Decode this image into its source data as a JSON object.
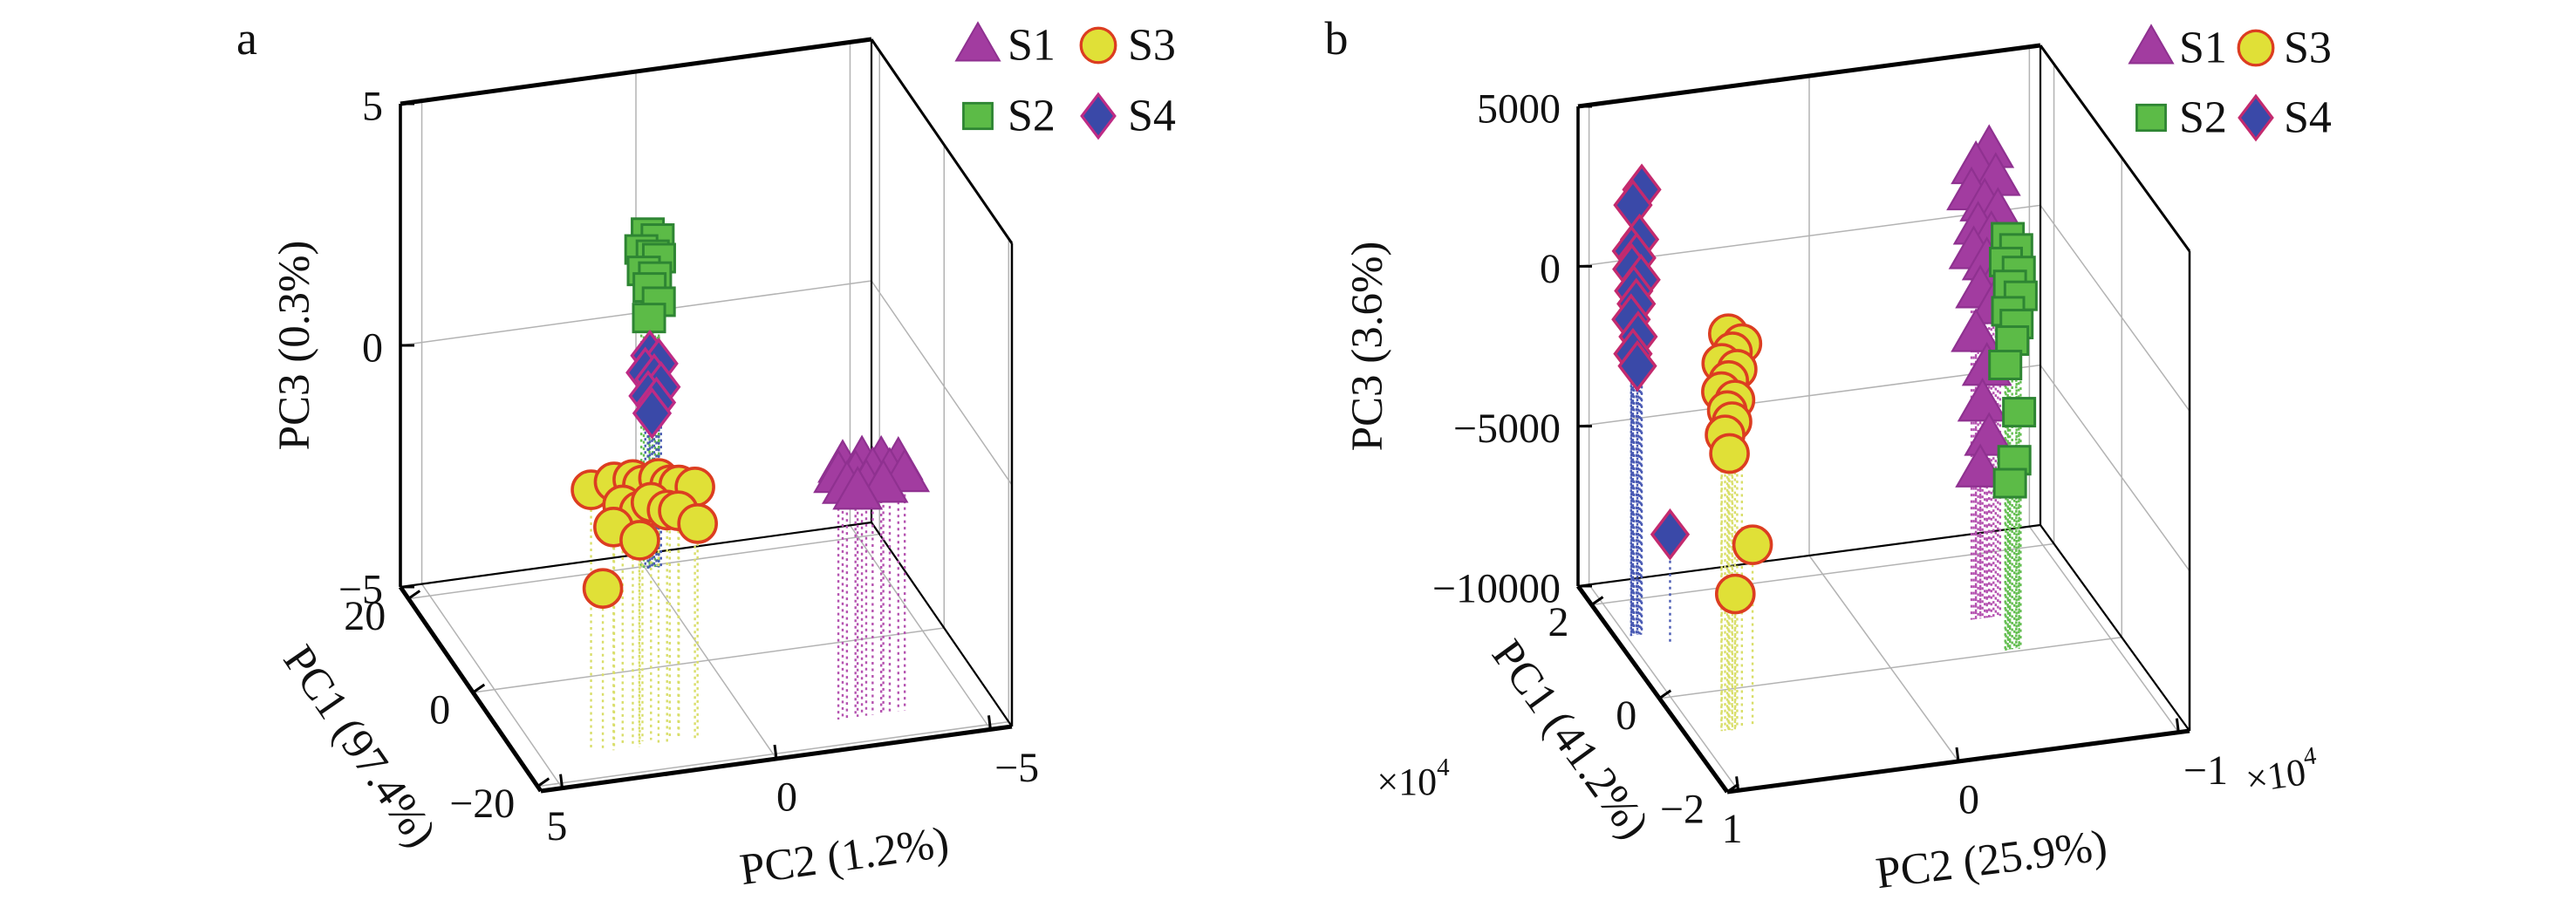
{
  "figure": {
    "background": "#ffffff",
    "description": "3D PCA score plots, panels a and b"
  },
  "chart_data": [
    {
      "id": "a",
      "panel_label": "a",
      "type": "scatter3d",
      "grid": true,
      "legend_position": "top-right",
      "axes": {
        "x": {
          "label": "PC2 (1.2%)",
          "lim": [
            5.5,
            -5.5
          ],
          "ticks": [
            {
              "v": 5,
              "label": "5"
            },
            {
              "v": 0,
              "label": "0"
            },
            {
              "v": -5,
              "label": "−5"
            }
          ]
        },
        "y": {
          "label": "PC1 (97.4%)",
          "lim": [
            22.5,
            -21
          ],
          "ticks": [
            {
              "v": 20,
              "label": "20"
            },
            {
              "v": 0,
              "label": "0"
            },
            {
              "v": -20,
              "label": "−20"
            }
          ]
        },
        "z": {
          "label": "PC3 (0.3%)",
          "lim": [
            -5,
            5
          ],
          "ticks": [
            {
              "v": 5,
              "label": "5"
            },
            {
              "v": 0,
              "label": "0"
            },
            {
              "v": -5,
              "label": "−5"
            }
          ]
        }
      },
      "legend_entries": [
        {
          "label": "S1",
          "series": "s1"
        },
        {
          "label": "S3",
          "series": "s3"
        },
        {
          "label": "S2",
          "series": "s2"
        },
        {
          "label": "S4",
          "series": "s4"
        }
      ],
      "series": [
        {
          "id": "s2",
          "name": "S2",
          "marker": "square",
          "fill": "#5CBB47",
          "edge": "#2E8533",
          "stem": "#63BE50",
          "points": [
            [
              -0.05,
              19.5,
              1.95
            ],
            [
              -0.28,
              19.5,
              1.8
            ],
            [
              0.1,
              19.5,
              1.62
            ],
            [
              -0.15,
              19.3,
              1.5
            ],
            [
              -0.32,
              19.6,
              1.38
            ],
            [
              0.05,
              19.4,
              1.18
            ],
            [
              -0.22,
              19.5,
              1.02
            ],
            [
              -0.1,
              19.6,
              0.8
            ],
            [
              -0.3,
              19.4,
              0.5
            ],
            [
              -0.08,
              19.5,
              0.18
            ]
          ]
        },
        {
          "id": "s4",
          "name": "S4",
          "marker": "diamond",
          "fill": "#3A49A8",
          "edge": "#BE2B85",
          "stem": "#4A5BB4",
          "points": [
            [
              -0.1,
              19.5,
              -0.6
            ],
            [
              -0.3,
              19.4,
              -0.78
            ],
            [
              0,
              19.6,
              -0.95
            ],
            [
              -0.2,
              19.5,
              -1.1
            ],
            [
              -0.36,
              19.5,
              -1.28
            ],
            [
              -0.05,
              19.4,
              -1.42
            ],
            [
              -0.26,
              19.6,
              -1.6
            ],
            [
              -0.15,
              19.5,
              -1.8
            ]
          ]
        },
        {
          "id": "s3",
          "name": "S3",
          "marker": "circle",
          "fill": "#E0E037",
          "edge": "#DC3D21",
          "stem": "#D9DE6A",
          "points": [
            [
              3.8,
              -14,
              0.35
            ],
            [
              3.3,
              -14.5,
              0.5
            ],
            [
              2.9,
              -15,
              0.55
            ],
            [
              2.6,
              -14,
              0.3
            ],
            [
              2.3,
              -15,
              0.5
            ],
            [
              2,
              -14.5,
              0.28
            ],
            [
              1.75,
              -14,
              0.2
            ],
            [
              1.45,
              -15,
              0.22
            ],
            [
              3.1,
              -14.5,
              0
            ],
            [
              2.75,
              -15,
              -0.12
            ],
            [
              2.4,
              -14,
              -0.08
            ],
            [
              2.1,
              -15,
              -0.18
            ],
            [
              1.8,
              -14.5,
              -0.28
            ],
            [
              3.35,
              -15,
              -0.38
            ],
            [
              1.35,
              -14.5,
              -0.6
            ],
            [
              2.7,
              -14.5,
              -0.78
            ],
            [
              3.6,
              -15,
              -1.62
            ]
          ]
        },
        {
          "id": "s1",
          "name": "S1",
          "marker": "triangle",
          "fill": "#A23CA0",
          "edge": "#8F3190",
          "stem": "#B553B0",
          "points": [
            [
              -2,
              -15,
              0.25
            ],
            [
              -2.45,
              -15,
              0.28
            ],
            [
              -2.9,
              -15,
              0.22
            ],
            [
              -3.3,
              -15,
              0.15
            ],
            [
              -1.9,
              -15,
              0.05
            ],
            [
              -2.3,
              -15,
              0
            ],
            [
              -2.7,
              -15,
              0.02
            ],
            [
              -3.1,
              -15,
              -0.05
            ],
            [
              -3.45,
              -15,
              -0.12
            ],
            [
              -2.1,
              -15,
              -0.2
            ],
            [
              -2.55,
              -15,
              -0.22
            ],
            [
              -2.95,
              -15,
              -0.28
            ],
            [
              -2.35,
              -15,
              -0.35
            ]
          ]
        }
      ],
      "view": {
        "origin": [
          459,
          673
        ],
        "vx": [
          540,
          -74
        ],
        "vy": [
          161,
          234
        ],
        "vz": [
          0,
          -554
        ],
        "letter_pos": [
          283,
          44
        ],
        "zlabel_pos": [
          338,
          396
        ],
        "ylabel_pos": [
          412,
          856
        ],
        "ylabel_rot": 55.5,
        "xlabel_pos": [
          968,
          982
        ],
        "xlabel_rot": -7.8,
        "legend": {
          "cols": [
            1121,
            1259
          ],
          "rows": [
            52,
            133
          ],
          "label_dx": 34
        }
      }
    },
    {
      "id": "b",
      "panel_label": "b",
      "type": "scatter3d",
      "grid": true,
      "legend_position": "top-right",
      "axes": {
        "x": {
          "label": "PC2 (25.9%)",
          "lim": [
            10500,
            -10500
          ],
          "multiplier": {
            "base": "×10",
            "exp": "4"
          },
          "ticks": [
            {
              "v": 10000,
              "label": "1"
            },
            {
              "v": 0,
              "label": "0"
            },
            {
              "v": -10000,
              "label": "−1"
            }
          ]
        },
        "y": {
          "label": "PC1 (41.2%)",
          "lim": [
            24000,
            -20000
          ],
          "multiplier": {
            "base": "×10",
            "exp": "4"
          },
          "ticks": [
            {
              "v": 20000,
              "label": "2"
            },
            {
              "v": 0,
              "label": "0"
            },
            {
              "v": -20000,
              "label": "−2"
            }
          ]
        },
        "z": {
          "label": "PC3 (3.6%)",
          "lim": [
            -10000,
            5000
          ],
          "ticks": [
            {
              "v": 5000,
              "label": "5000"
            },
            {
              "v": 0,
              "label": "0"
            },
            {
              "v": -5000,
              "label": "−5000"
            },
            {
              "v": -10000,
              "label": "−10000"
            }
          ]
        }
      },
      "legend_entries": [
        {
          "label": "S1",
          "series": "s1"
        },
        {
          "label": "S3",
          "series": "s3"
        },
        {
          "label": "S2",
          "series": "s2"
        },
        {
          "label": "S4",
          "series": "s4"
        }
      ],
      "series": [
        {
          "id": "s4",
          "name": "S4",
          "marker": "diamond",
          "fill": "#3A49A8",
          "edge": "#C42A6E",
          "stem": "#4A5BB4",
          "points": [
            [
              9300,
              13000,
              3900
            ],
            [
              9700,
              13000,
              3450
            ],
            [
              9400,
              13000,
              2350
            ],
            [
              9800,
              12800,
              2050
            ],
            [
              9500,
              13200,
              1750
            ],
            [
              9750,
              13000,
              1450
            ],
            [
              9350,
              12900,
              1100
            ],
            [
              9650,
              13100,
              750
            ],
            [
              9550,
              13000,
              350
            ],
            [
              9800,
              12900,
              -100
            ],
            [
              9450,
              13100,
              -700
            ],
            [
              9700,
              13000,
              -1200
            ],
            [
              9500,
              13000,
              -1600
            ],
            [
              8400,
              10500,
              -6600
            ]
          ]
        },
        {
          "id": "s3",
          "name": "S3",
          "marker": "circle",
          "fill": "#E0E037",
          "edge": "#DC3D21",
          "stem": "#D9DE6A",
          "points": [
            [
              8600,
              -8000,
              2400
            ],
            [
              8000,
              -8100,
              2050
            ],
            [
              8400,
              -7900,
              1800
            ],
            [
              8900,
              -8000,
              1500
            ],
            [
              8200,
              -8000,
              1250
            ],
            [
              8600,
              -8100,
              950
            ],
            [
              8900,
              -7900,
              600
            ],
            [
              8300,
              -8000,
              300
            ],
            [
              8650,
              -8000,
              0
            ],
            [
              8450,
              -8100,
              -350
            ],
            [
              8750,
              -8000,
              -750
            ],
            [
              8550,
              -8000,
              -1350
            ],
            [
              7500,
              -8000,
              -4300
            ],
            [
              8300,
              -8100,
              -5750
            ]
          ]
        },
        {
          "id": "s1",
          "name": "S1",
          "marker": "triangle",
          "fill": "#A23CA0",
          "edge": "#8F3190",
          "stem": "#B553B0",
          "points": [
            [
              -5600,
              7300,
              4600
            ],
            [
              -5000,
              7300,
              4150
            ],
            [
              -5900,
              7300,
              3700
            ],
            [
              -4800,
              7300,
              3350
            ],
            [
              -5400,
              7300,
              2950
            ],
            [
              -6000,
              7300,
              2600
            ],
            [
              -5100,
              7300,
              2250
            ],
            [
              -5700,
              7300,
              1900
            ],
            [
              -4900,
              7300,
              1500
            ],
            [
              -5500,
              7300,
              1100
            ],
            [
              -6100,
              7300,
              700
            ],
            [
              -5200,
              7300,
              250
            ],
            [
              -5800,
              7300,
              -300
            ],
            [
              -5000,
              7300,
              -1100
            ],
            [
              -5500,
              7300,
              -2200
            ],
            [
              -5300,
              7300,
              -3300
            ],
            [
              -5600,
              7300,
              -4400
            ],
            [
              -5200,
              7300,
              -5350
            ]
          ]
        },
        {
          "id": "s2",
          "name": "S2",
          "marker": "square",
          "fill": "#5CBB47",
          "edge": "#2E8533",
          "stem": "#63BE50",
          "points": [
            [
              -5400,
              500,
              2900
            ],
            [
              -5800,
              600,
              2500
            ],
            [
              -5300,
              400,
              2150
            ],
            [
              -5900,
              500,
              1800
            ],
            [
              -5500,
              500,
              1400
            ],
            [
              -6000,
              600,
              1000
            ],
            [
              -5400,
              400,
              600
            ],
            [
              -5800,
              500,
              150
            ],
            [
              -5600,
              500,
              -350
            ],
            [
              -5300,
              600,
              -1100
            ],
            [
              -5900,
              400,
              -2600
            ],
            [
              -5700,
              500,
              -4100
            ],
            [
              -5500,
              500,
              -4800
            ]
          ]
        }
      ],
      "view": {
        "origin": [
          1809,
          672
        ],
        "vx": [
          530,
          -70
        ],
        "vy": [
          171,
          236
        ],
        "vz": [
          0,
          -550
        ],
        "letter_pos": [
          1532,
          44
        ],
        "zlabel_pos": [
          1568,
          397
        ],
        "ylabel_pos": [
          1800,
          848
        ],
        "ylabel_rot": 54,
        "xlabel_pos": [
          2283,
          986
        ],
        "xlabel_rot": -7.1,
        "mult_y_pos": [
          1620,
          896
        ],
        "mult_y_rot": 0,
        "mult_x_pos": [
          2616,
          888
        ],
        "mult_x_rot": -8,
        "legend": {
          "cols": [
            2466,
            2586
          ],
          "rows": [
            55,
            135
          ],
          "label_dx": 32
        }
      }
    }
  ],
  "style": {
    "grid_color": "#B3B3B3",
    "edge_color": "#000000",
    "text_color": "#111111",
    "tick_font": 48,
    "axis_label_font": 51,
    "legend_font": 52,
    "letter_font": 54,
    "mult_font": 44
  }
}
